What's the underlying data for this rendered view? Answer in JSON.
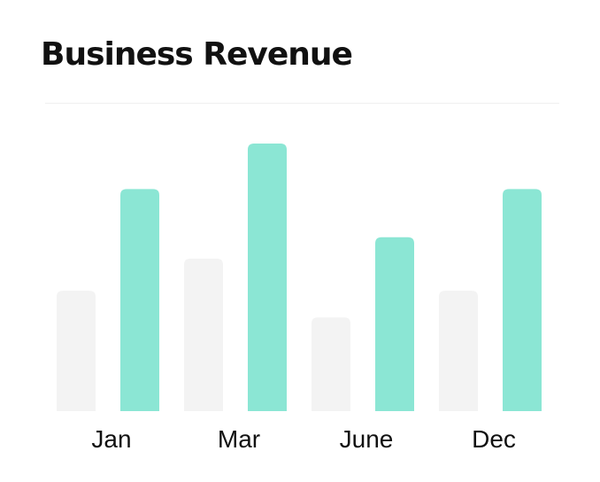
{
  "header": {
    "title": "Business Revenue"
  },
  "colors": {
    "series_muted": "#f3f3f3",
    "series_accent": "#8be6d4",
    "text": "#111111"
  },
  "chart_data": {
    "type": "bar",
    "title": "Business Revenue",
    "xlabel": "",
    "ylabel": "",
    "categories": [
      "Jan",
      "Mar",
      "June",
      "Dec"
    ],
    "series": [
      {
        "values": [
          45,
          57,
          35,
          45
        ]
      },
      {
        "values": [
          83,
          100,
          65,
          83
        ]
      }
    ],
    "ylim": [
      0,
      100
    ],
    "grid": false,
    "legend": "none"
  }
}
